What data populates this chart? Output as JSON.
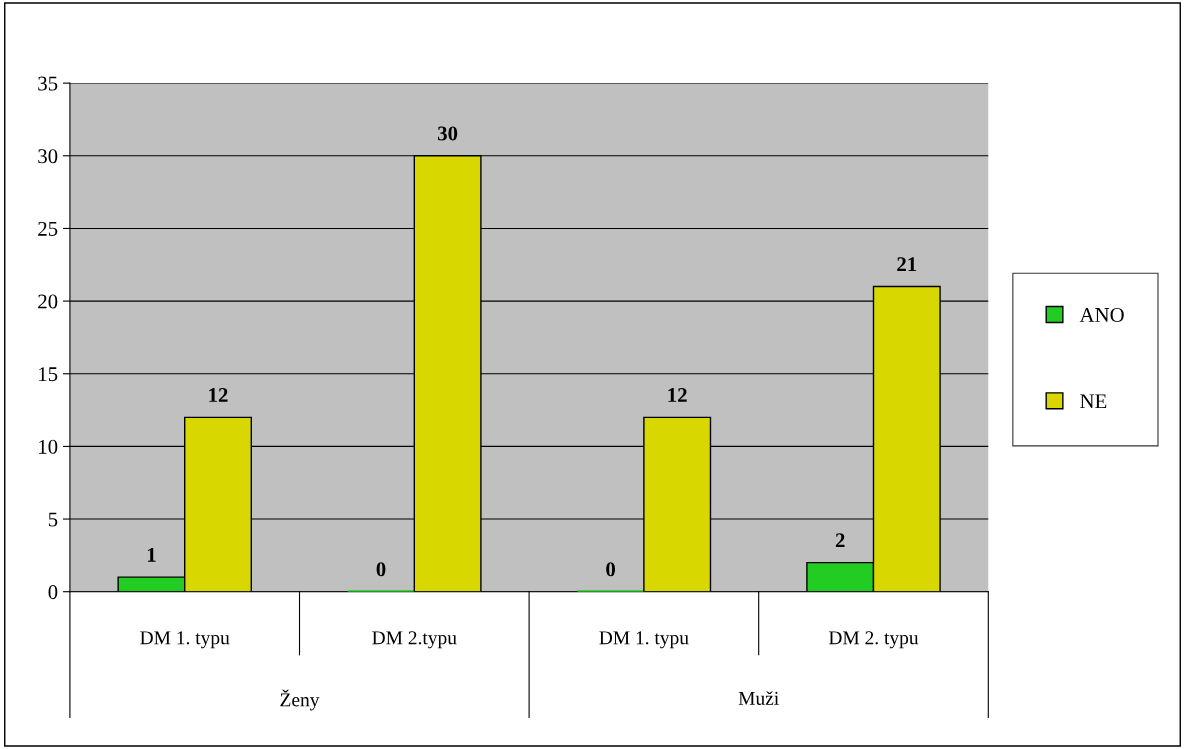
{
  "chart_data": {
    "type": "bar",
    "categories": [
      "DM 1. typu",
      "DM 2.typu",
      "DM 1. typu",
      "DM 2. typu"
    ],
    "series": [
      {
        "name": "ANO",
        "color": "#22cc22",
        "values": [
          1,
          0,
          0,
          2
        ]
      },
      {
        "name": "NE",
        "color": "#d8d800",
        "values": [
          12,
          30,
          12,
          21
        ]
      }
    ],
    "annotations": [
      "Ženy",
      "Muži"
    ],
    "ylim": [
      0,
      35
    ],
    "yticks": [
      0,
      5,
      10,
      15,
      20,
      25,
      30,
      35
    ],
    "grid": "y",
    "legend": "right",
    "data_labels": true
  }
}
